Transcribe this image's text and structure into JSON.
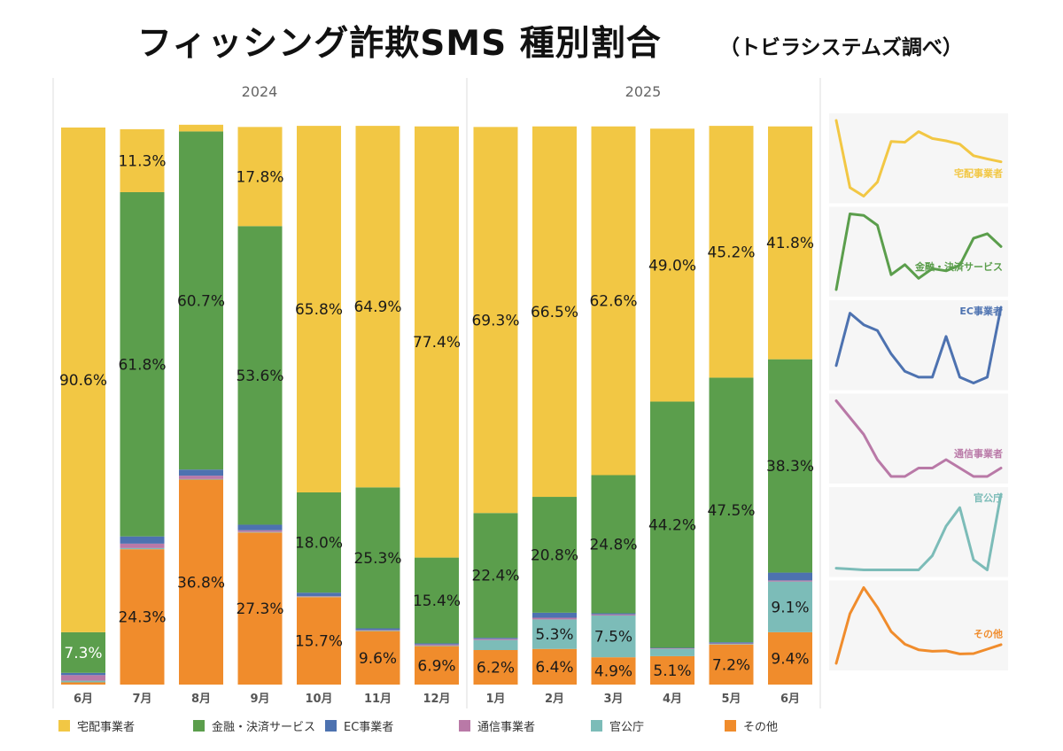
{
  "header": {
    "title": "フィッシング詐欺SMS 種別割合",
    "subtitle": "（トビラシステムズ調べ）"
  },
  "colors": {
    "takuhai": "#f2c744",
    "kinyu": "#5b9e4c",
    "ec": "#4d72b0",
    "tsushin": "#b979a7",
    "kankocho": "#7cbcb8",
    "sonota": "#f08c2c"
  },
  "chart_data": {
    "type": "bar",
    "stacked": true,
    "normalized_percent": true,
    "title": "フィッシング詐欺SMS 種別割合",
    "ylim": [
      0,
      100
    ],
    "year_groups": [
      {
        "label": "2024",
        "months": [
          "6月",
          "7月",
          "8月",
          "9月",
          "10月",
          "11月",
          "12月"
        ]
      },
      {
        "label": "2025",
        "months": [
          "1月",
          "2月",
          "3月",
          "4月",
          "5月",
          "6月"
        ]
      }
    ],
    "categories": [
      "6月",
      "7月",
      "8月",
      "9月",
      "10月",
      "11月",
      "12月",
      "1月",
      "2月",
      "3月",
      "4月",
      "5月",
      "6月"
    ],
    "series": [
      {
        "key": "sonota",
        "name": "その他",
        "values": [
          0.4,
          24.3,
          36.8,
          27.3,
          15.7,
          9.6,
          6.9,
          6.2,
          6.4,
          4.9,
          5.1,
          7.2,
          9.4
        ]
      },
      {
        "key": "kankocho",
        "name": "官公庁",
        "values": [
          0.3,
          0.2,
          0.1,
          0.1,
          0.1,
          0.1,
          0.1,
          1.8,
          5.3,
          7.5,
          1.3,
          0.1,
          9.1
        ]
      },
      {
        "key": "tsushin",
        "name": "通信事業者",
        "values": [
          1.0,
          0.8,
          0.6,
          0.3,
          0.1,
          0.1,
          0.2,
          0.2,
          0.3,
          0.2,
          0.1,
          0.1,
          0.2
        ]
      },
      {
        "key": "ec",
        "name": "EC事業者",
        "values": [
          0.4,
          1.3,
          1.1,
          1.0,
          0.6,
          0.3,
          0.2,
          0.2,
          0.9,
          0.2,
          0.1,
          0.2,
          1.4
        ]
      },
      {
        "key": "kinyu",
        "name": "金融・決済サービス",
        "values": [
          7.3,
          61.8,
          60.7,
          53.6,
          18.0,
          25.3,
          15.4,
          22.4,
          20.8,
          24.8,
          44.2,
          47.5,
          38.3
        ]
      },
      {
        "key": "takuhai",
        "name": "宅配事業者",
        "values": [
          90.6,
          11.3,
          1.2,
          17.8,
          65.8,
          64.9,
          77.4,
          69.3,
          66.5,
          62.6,
          49.0,
          45.2,
          41.8
        ]
      }
    ],
    "data_labels": [
      {
        "key": "takuhai",
        "labels": [
          "90.6%",
          "11.3%",
          "",
          "17.8%",
          "65.8%",
          "64.9%",
          "77.4%",
          "69.3%",
          "66.5%",
          "62.6%",
          "49.0%",
          "45.2%",
          "41.8%"
        ]
      },
      {
        "key": "kinyu",
        "labels": [
          "7.3%",
          "61.8%",
          "60.7%",
          "53.6%",
          "18.0%",
          "25.3%",
          "15.4%",
          "22.4%",
          "20.8%",
          "24.8%",
          "44.2%",
          "47.5%",
          "38.3%"
        ]
      },
      {
        "key": "kankocho",
        "labels": [
          "",
          "",
          "",
          "",
          "",
          "",
          "",
          "",
          "5.3%",
          "7.5%",
          "",
          "",
          "9.1%"
        ]
      },
      {
        "key": "sonota",
        "labels": [
          "",
          "24.3%",
          "36.8%",
          "27.3%",
          "15.7%",
          "9.6%",
          "6.9%",
          "6.2%",
          "6.4%",
          "4.9%",
          "5.1%",
          "7.2%",
          "9.4%"
        ]
      }
    ],
    "legend": [
      "宅配事業者",
      "金融・決済サービス",
      "EC事業者",
      "通信事業者",
      "官公庁",
      "その他"
    ],
    "legend_position": "bottom",
    "sparklines": [
      {
        "key": "takuhai",
        "label": "宅配事業者"
      },
      {
        "key": "kinyu",
        "label": "金融・決済サービス"
      },
      {
        "key": "ec",
        "label": "EC事業者"
      },
      {
        "key": "tsushin",
        "label": "通信事業者"
      },
      {
        "key": "kankocho",
        "label": "官公庁"
      },
      {
        "key": "sonota",
        "label": "その他"
      }
    ]
  }
}
